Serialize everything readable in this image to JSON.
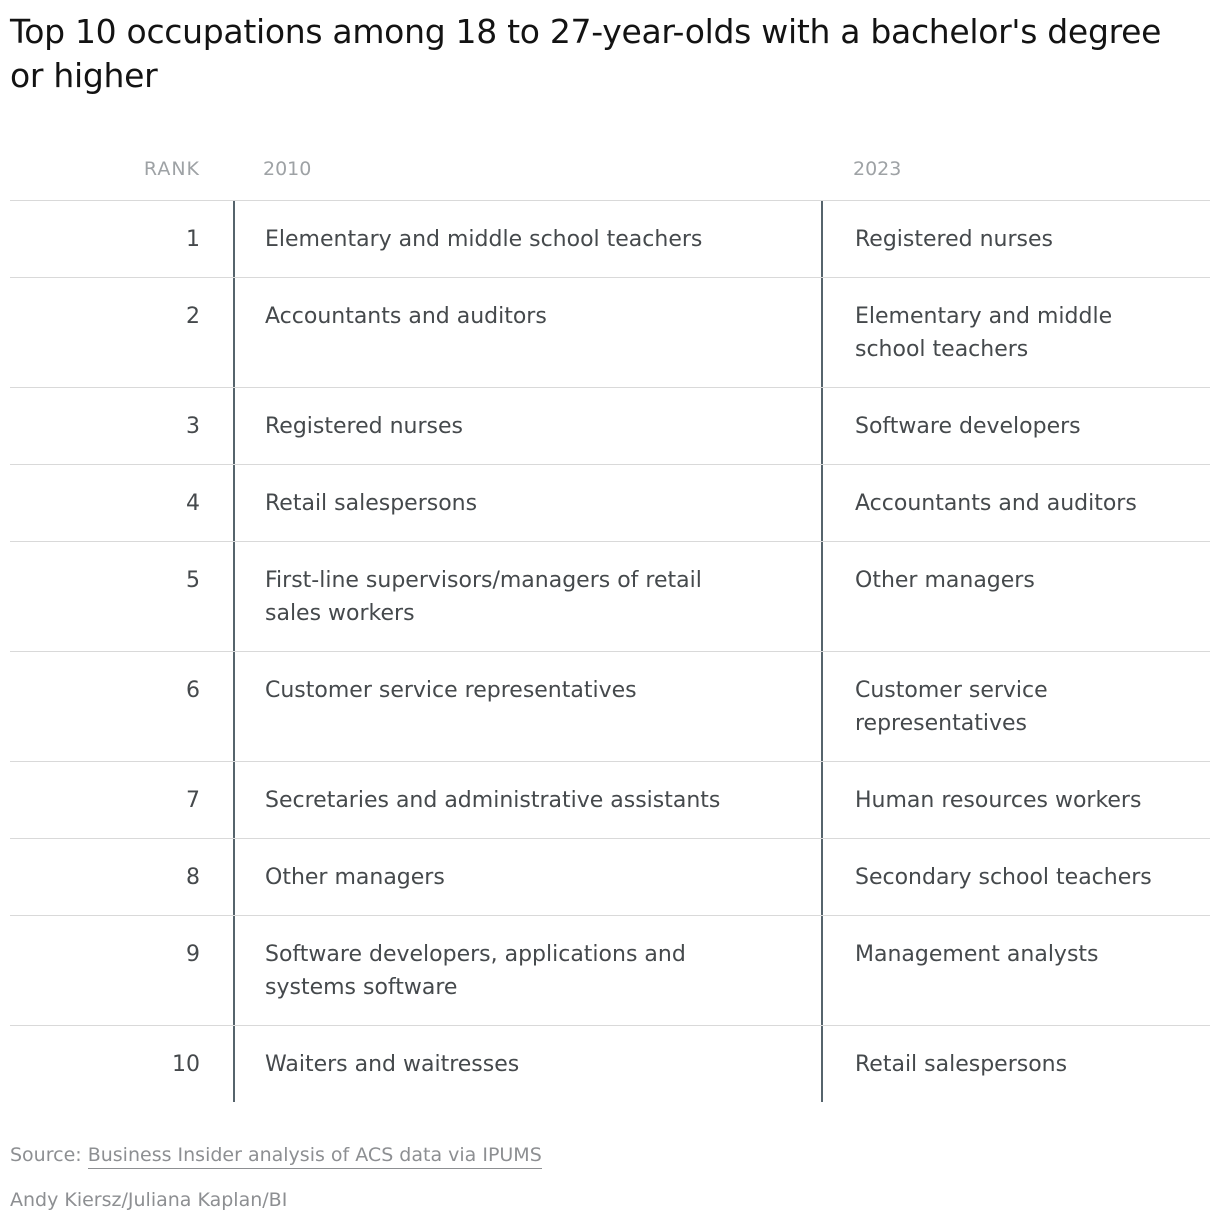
{
  "title": "Top 10 occupations among 18 to 27-year-olds with a bachelor's degree or higher",
  "table": {
    "headers": {
      "rank": "RANK",
      "col2010": "2010",
      "col2023": "2023"
    },
    "rows": [
      {
        "rank": "1",
        "y2010": "Elementary and middle school teachers",
        "y2023": "Registered nurses"
      },
      {
        "rank": "2",
        "y2010": "Accountants and auditors",
        "y2023": "Elementary and middle school teachers"
      },
      {
        "rank": "3",
        "y2010": "Registered nurses",
        "y2023": "Software developers"
      },
      {
        "rank": "4",
        "y2010": "Retail salespersons",
        "y2023": "Accountants and auditors"
      },
      {
        "rank": "5",
        "y2010": "First-line supervisors/managers of retail sales workers",
        "y2023": "Other managers"
      },
      {
        "rank": "6",
        "y2010": "Customer service representatives",
        "y2023": "Customer service representatives"
      },
      {
        "rank": "7",
        "y2010": "Secretaries and administrative assistants",
        "y2023": "Human resources workers"
      },
      {
        "rank": "8",
        "y2010": "Other managers",
        "y2023": "Secondary school teachers"
      },
      {
        "rank": "9",
        "y2010": "Software developers, applications and systems software",
        "y2023": "Management analysts"
      },
      {
        "rank": "10",
        "y2010": "Waiters and waitresses",
        "y2023": "Retail salespersons"
      }
    ]
  },
  "footer": {
    "source_prefix": "Source: ",
    "source_link": "Business Insider analysis of ACS data via IPUMS",
    "byline": "Andy Kiersz/Juliana Kaplan/BI"
  },
  "colors": {
    "title_text": "#131313",
    "header_text": "#9ea2a5",
    "cell_text": "#45494c",
    "vertical_rule": "#56646c",
    "horizontal_rule": "#d9d9d9",
    "footer_text": "#8d8f92"
  }
}
